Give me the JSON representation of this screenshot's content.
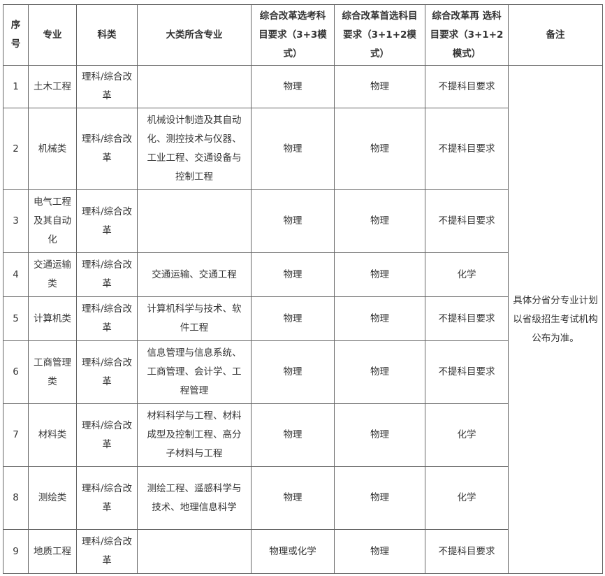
{
  "headers": [
    "序号",
    "专业",
    "科类",
    "大类所含专业",
    "综合改革选考科目要求（3+3模式）",
    "综合改革首选科目要求（3+1+2模式）",
    "综合改革再 选科目要求（3+1+2模式）",
    "备注"
  ],
  "rows": [
    {
      "no": "1",
      "major": "土木工程",
      "category": "理科/综合改革",
      "includes": "",
      "req33": "物理",
      "first": "物理",
      "second": "不提科目要求"
    },
    {
      "no": "2",
      "major": "机械类",
      "category": "理科/综合改革",
      "includes": "机械设计制造及其自动化、测控技术与仪器、工业工程、交通设备与控制工程",
      "req33": "物理",
      "first": "物理",
      "second": "不提科目要求"
    },
    {
      "no": "3",
      "major": "电气工程及其自动化",
      "category": "理科/综合改革",
      "includes": "",
      "req33": "物理",
      "first": "物理",
      "second": "不提科目要求"
    },
    {
      "no": "4",
      "major": "交通运输类",
      "category": "理科/综合改革",
      "includes": "交通运输、交通工程",
      "req33": "物理",
      "first": "物理",
      "second": "化学"
    },
    {
      "no": "5",
      "major": "计算机类",
      "category": "理科/综合改革",
      "includes": "计算机科学与技术、软件工程",
      "req33": "物理",
      "first": "物理",
      "second": "不提科目要求"
    },
    {
      "no": "6",
      "major": "工商管理类",
      "category": "理科/综合改革",
      "includes": "信息管理与信息系统、工商管理、会计学、工程管理",
      "req33": "物理",
      "first": "物理",
      "second": "不提科目要求"
    },
    {
      "no": "7",
      "major": "材料类",
      "category": "理科/综合改革",
      "includes": "材料科学与工程、材料成型及控制工程、高分子材料与工程",
      "req33": "物理",
      "first": "物理",
      "second": "化学"
    },
    {
      "no": "8",
      "major": "测绘类",
      "category": "理科/综合改革",
      "includes": "测绘工程、遥感科学与技术、地理信息科学",
      "req33": "物理",
      "first": "物理",
      "second": "化学"
    },
    {
      "no": "9",
      "major": "地质工程",
      "category": "理科/综合改革",
      "includes": "",
      "req33": "物理或化学",
      "first": "物理",
      "second": "不提科目要求"
    }
  ],
  "note": "具体分省分专业计划以省级招生考试机构公布为准。"
}
